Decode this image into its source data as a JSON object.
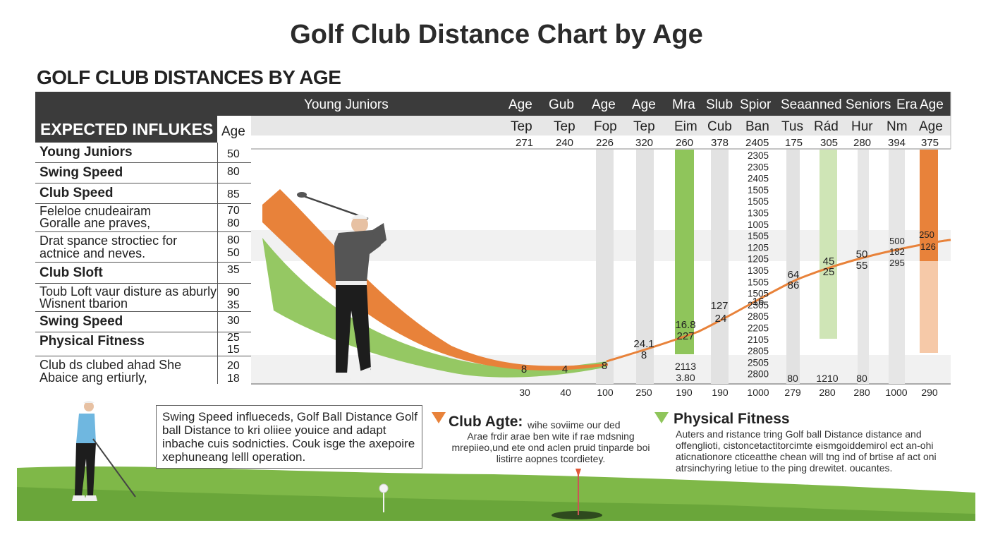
{
  "title": "Golf Club Distance Chart by Age",
  "subtitle": "GOLF CLUB DISTANCES BY AGE",
  "header": {
    "group_left": "Young Juniors",
    "row1": [
      "Age",
      "Gub",
      "Age",
      "Age",
      "Mra",
      "Slub",
      "Spior",
      "Seaanned Seniors",
      "Era",
      "Age"
    ],
    "row2": [
      "Tep",
      "Tep",
      "Fop",
      "Tep",
      "Eim",
      "Cub",
      "Ban",
      "Tus",
      "Rád",
      "Hur",
      "Nm",
      "Age"
    ],
    "row3": [
      "271",
      "240",
      "226",
      "320",
      "260",
      "378",
      "2405",
      "175",
      "305",
      "280",
      "394",
      "375"
    ]
  },
  "left_table": {
    "title": "EXPECTED INFLUKES",
    "col_label": "Age",
    "rows": [
      {
        "label": "Young Juniors",
        "bold": true,
        "values": [
          "50"
        ]
      },
      {
        "label": "Swing Speed",
        "bold": true,
        "values": [
          "80"
        ]
      },
      {
        "label": "Club Speed",
        "bold": true,
        "values": [
          "85"
        ]
      },
      {
        "label": "Feleloe cnudeairam",
        "label2": "Goralle ane praves,",
        "bold": false,
        "values": [
          "70",
          "80"
        ]
      },
      {
        "label": "Drat spance stroctiec for",
        "label2": "actnice and neves.",
        "bold": false,
        "values": [
          "80",
          "50"
        ]
      },
      {
        "label": "Club Sloft",
        "bold": true,
        "values": [
          "35"
        ]
      },
      {
        "label": "Toub Loft vaur disture as aburly",
        "label2": "Wisnent tbarion",
        "bold": false,
        "values": [
          "90",
          "35"
        ]
      },
      {
        "label": "Swing Speed",
        "bold": true,
        "values": [
          "30"
        ]
      },
      {
        "label": "Physical Fitness",
        "bold": true,
        "values": [
          "25",
          "15"
        ]
      },
      {
        "label": "Club ds clubed ahad She",
        "label2": "Abaice ang ertiurly,",
        "bold": false,
        "values": [
          "20",
          "18"
        ]
      }
    ]
  },
  "chart_data": {
    "type": "line",
    "title": "Golf Club Distance Chart by Age",
    "xlabel": "",
    "ylabel": "",
    "x_axis_labels": [
      "30",
      "40",
      "100",
      "250",
      "190",
      "190",
      "1000",
      "279",
      "280",
      "280",
      "1000",
      "290"
    ],
    "series": [
      {
        "name": "",
        "color": "#e8823a",
        "point_labels": [
          "8",
          "4",
          "8",
          "24.1",
          "8",
          "16.8",
          "227",
          "127",
          "24",
          "16",
          "64",
          "86",
          "45",
          "25",
          "50",
          "55",
          "500",
          "182",
          "295",
          "250",
          "126"
        ]
      }
    ],
    "stack_labels": [
      "2305",
      "2305",
      "2405",
      "1505",
      "1505",
      "1305",
      "1005",
      "1505",
      "1205",
      "1205",
      "1305",
      "1505",
      "1505",
      "2305",
      "2805",
      "2205",
      "2105",
      "2805",
      "2505",
      "2800"
    ],
    "lower_labels": [
      "2113",
      "3.80",
      "80",
      "1210",
      "80"
    ],
    "grid": false
  },
  "bottom_box": {
    "text": "Swing Speed influeceds, Golf Ball Distance Golf ball Distance to kri oliiee youice and adapt inbache cuis sodnicties. Couk isge the axepoire xephuneang lelll operation."
  },
  "callout_club": {
    "heading": "Club Agte:",
    "small": "wihe soviime our ded",
    "text": "Arae frdir arae ben wite if rae mdsning mrepiieo,und ete ond aclen pruid tinparde boi listirre aopnes tcordietey."
  },
  "callout_fitness": {
    "heading": "Physical Fitness",
    "text": "Auters and ristance tring Golf ball Distance distance and offenglioti, cistoncetactitorcimte eismgoiddemirol ect an-ohi aticnationore cticeatthe chean will tng ind of brtise af act oni atrsinchyring letiue to the ping drewitet. oucantes."
  },
  "colors": {
    "orange": "#e8823a",
    "green": "#8fc55b",
    "dark": "#3b3b3b",
    "grass": "#7fb848"
  }
}
